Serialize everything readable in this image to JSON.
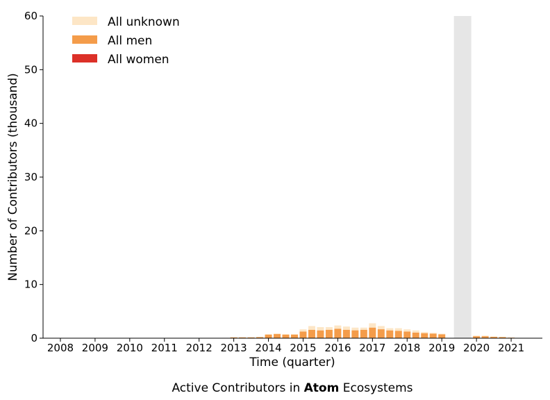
{
  "chart_data": {
    "type": "bar",
    "stacked": true,
    "xlabel": "Time (quarter)",
    "ylabel": "Number of Contributors (thousand)",
    "ylim": [
      0,
      60
    ],
    "yticks": [
      0,
      10,
      20,
      30,
      40,
      50,
      60
    ],
    "xlim": [
      2007.5,
      2021.9
    ],
    "xticks": [
      "2008",
      "2009",
      "2010",
      "2011",
      "2012",
      "2013",
      "2014",
      "2015",
      "2016",
      "2017",
      "2018",
      "2019",
      "2020",
      "2021"
    ],
    "grid": false,
    "legend_position": "top-left",
    "shaded_region": [
      2019.35,
      2019.85
    ],
    "quarters": [
      2012.75,
      2013.0,
      2013.25,
      2013.5,
      2013.75,
      2014.0,
      2014.25,
      2014.5,
      2014.75,
      2015.0,
      2015.25,
      2015.5,
      2015.75,
      2016.0,
      2016.25,
      2016.5,
      2016.75,
      2017.0,
      2017.25,
      2017.5,
      2017.75,
      2018.0,
      2018.25,
      2018.5,
      2018.75,
      2019.0,
      2020.0,
      2020.25,
      2020.5,
      2020.75,
      2021.0
    ],
    "series": [
      {
        "name": "All women",
        "color": "#dc3028",
        "values": [
          0.0,
          0.0,
          0.0,
          0.0,
          0.0,
          0.02,
          0.02,
          0.02,
          0.02,
          0.05,
          0.06,
          0.06,
          0.06,
          0.07,
          0.07,
          0.07,
          0.07,
          0.08,
          0.07,
          0.06,
          0.06,
          0.05,
          0.05,
          0.04,
          0.04,
          0.03,
          0.02,
          0.02,
          0.01,
          0.01,
          0.01
        ]
      },
      {
        "name": "All men",
        "color": "#f49c4a",
        "values": [
          0.05,
          0.15,
          0.15,
          0.15,
          0.2,
          0.65,
          0.75,
          0.65,
          0.65,
          1.2,
          1.5,
          1.4,
          1.5,
          1.7,
          1.5,
          1.4,
          1.5,
          1.9,
          1.6,
          1.4,
          1.3,
          1.2,
          1.0,
          0.9,
          0.8,
          0.7,
          0.35,
          0.35,
          0.25,
          0.2,
          0.1
        ]
      },
      {
        "name": "All unknown",
        "color": "#fde6c6",
        "values": [
          0.02,
          0.05,
          0.05,
          0.05,
          0.05,
          0.1,
          0.1,
          0.1,
          0.1,
          0.4,
          0.7,
          0.6,
          0.5,
          0.6,
          0.6,
          0.5,
          0.4,
          0.8,
          0.6,
          0.4,
          0.5,
          0.4,
          0.4,
          0.2,
          0.15,
          0.1,
          0.1,
          0.1,
          0.05,
          0.05,
          0.05
        ]
      }
    ]
  },
  "legend": {
    "items": [
      {
        "label": "All unknown",
        "color": "#fde6c6"
      },
      {
        "label": "All men",
        "color": "#f49c4a"
      },
      {
        "label": "All women",
        "color": "#dc3028"
      }
    ]
  },
  "caption": {
    "prefix": "Active Contributors in ",
    "bold": "Atom",
    "suffix": " Ecosystems"
  },
  "colors": {
    "shade": "#e6e6e6",
    "axis": "#000000"
  }
}
